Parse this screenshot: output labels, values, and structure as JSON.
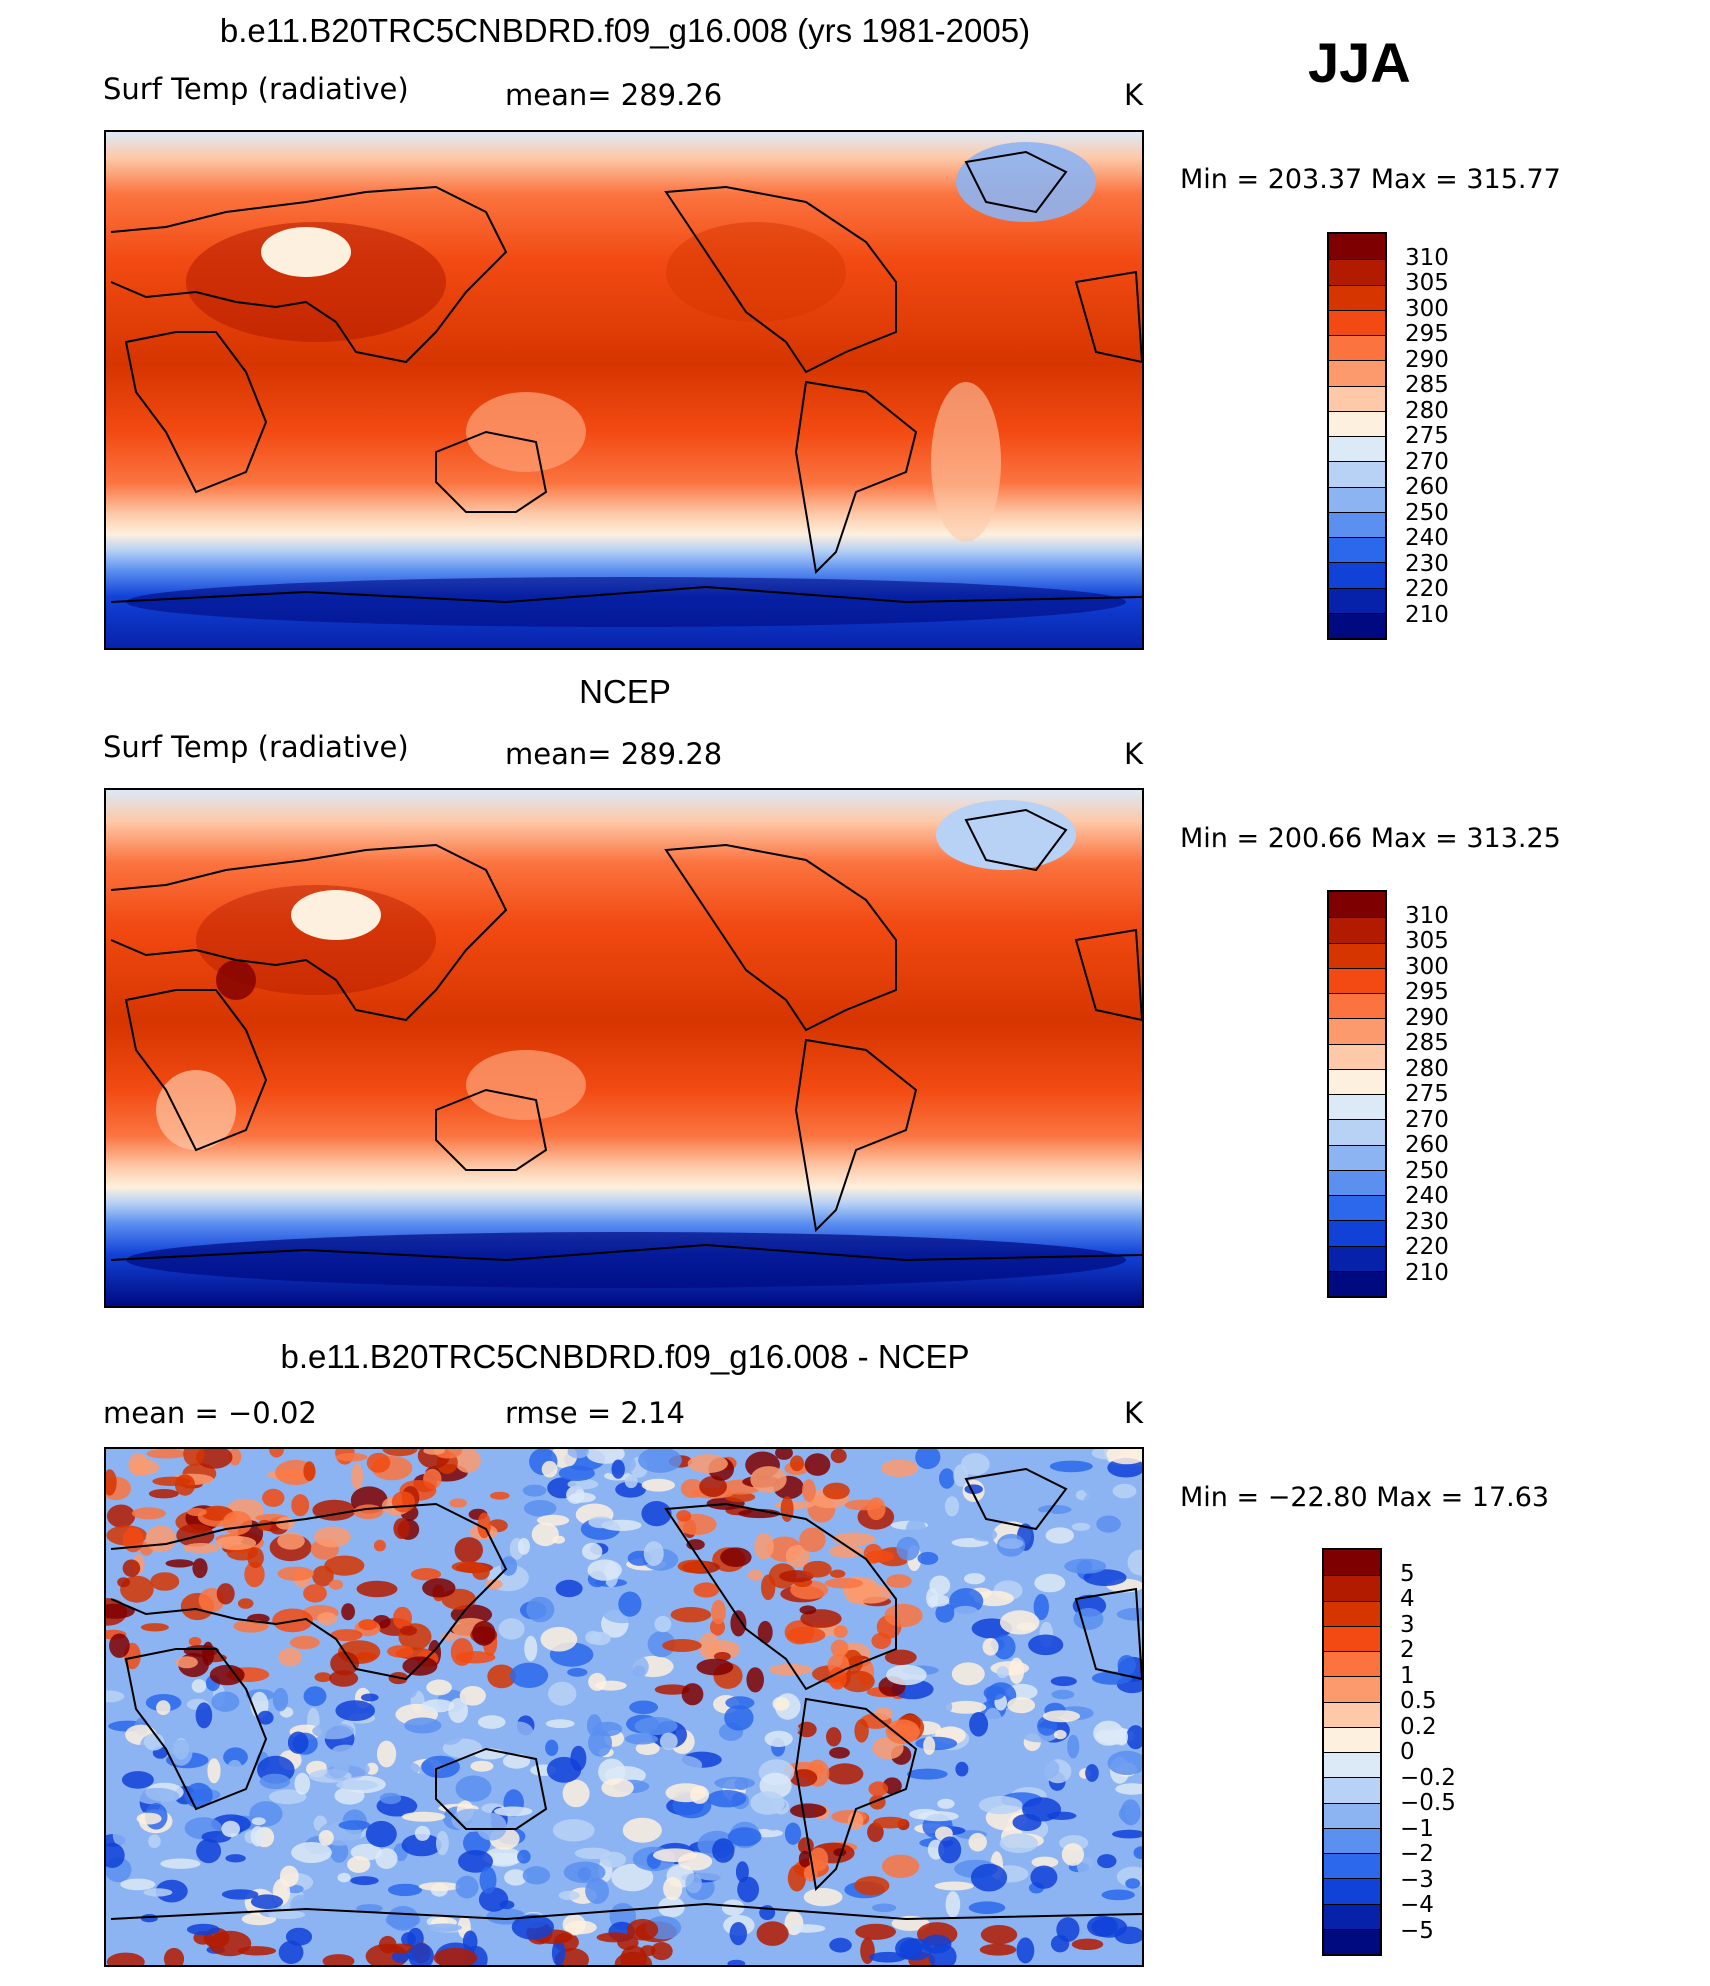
{
  "season": "JJA",
  "panels": [
    {
      "title": "b.e11.B20TRC5CNBDRD.f09_g16.008 (yrs 1981-2005)",
      "variable": "Surf Temp (radiative)",
      "stat_text": "mean=  289.26",
      "units": "K",
      "minmax_text": "Min  =  203.37  Max  =  315.77",
      "colorbar": {
        "labels": [
          "310",
          "305",
          "300",
          "295",
          "290",
          "285",
          "280",
          "275",
          "270",
          "260",
          "250",
          "240",
          "230",
          "220",
          "210"
        ],
        "colors": [
          "#7f0000",
          "#b31b00",
          "#d63500",
          "#f24a12",
          "#fb7440",
          "#fc9a6e",
          "#fdc9a8",
          "#fef0de",
          "#dce9f7",
          "#b8d2f5",
          "#8db4f2",
          "#5b8ff0",
          "#2c68eb",
          "#1142d8",
          "#0722aa",
          "#000a80"
        ]
      }
    },
    {
      "title": "NCEP",
      "variable": "Surf Temp (radiative)",
      "stat_text": "mean=  289.28",
      "units": "K",
      "minmax_text": "Min  =  200.66  Max  =  313.25",
      "colorbar": {
        "labels": [
          "310",
          "305",
          "300",
          "295",
          "290",
          "285",
          "280",
          "275",
          "270",
          "260",
          "250",
          "240",
          "230",
          "220",
          "210"
        ],
        "colors": [
          "#7f0000",
          "#b31b00",
          "#d63500",
          "#f24a12",
          "#fb7440",
          "#fc9a6e",
          "#fdc9a8",
          "#fef0de",
          "#dce9f7",
          "#b8d2f5",
          "#8db4f2",
          "#5b8ff0",
          "#2c68eb",
          "#1142d8",
          "#0722aa",
          "#000a80"
        ]
      }
    },
    {
      "title": "b.e11.B20TRC5CNBDRD.f09_g16.008 - NCEP",
      "variable": "mean =    −0.02",
      "stat_text": "rmse =     2.14",
      "units": "K",
      "minmax_text": "Min  =  −22.80  Max  =    17.63",
      "colorbar": {
        "labels": [
          "5",
          "4",
          "3",
          "2",
          "1",
          "0.5",
          "0.2",
          "0",
          "−0.2",
          "−0.5",
          "−1",
          "−2",
          "−3",
          "−4",
          "−5"
        ],
        "colors": [
          "#7f0000",
          "#b31b00",
          "#d63500",
          "#f24a12",
          "#fb7440",
          "#fc9a6e",
          "#fdc9a8",
          "#fef0de",
          "#dce9f7",
          "#b8d2f5",
          "#8db4f2",
          "#5b8ff0",
          "#2c68eb",
          "#1142d8",
          "#0722aa",
          "#000a80"
        ]
      }
    }
  ]
}
